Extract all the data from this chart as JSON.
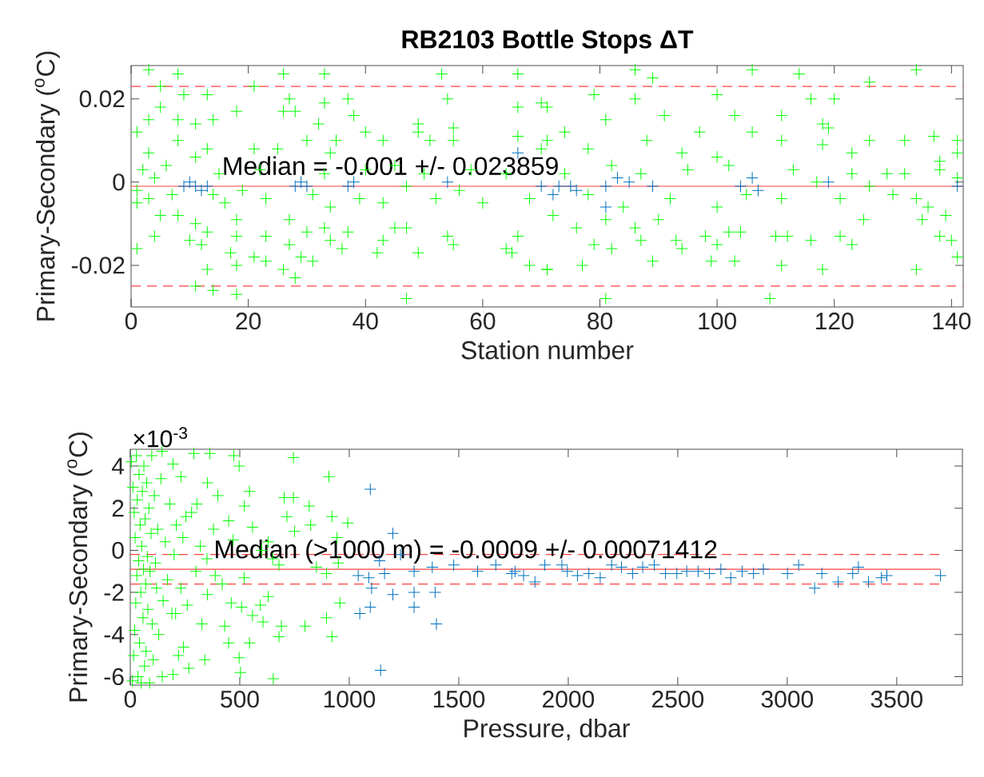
{
  "chart_data": [
    {
      "type": "scatter",
      "title": "RB2103 Bottle Stops ΔT",
      "xlabel": "Station number",
      "ylabel": "Primary-Secondary ($^{o}$C)",
      "marker": "cross",
      "xlim": [
        0,
        142
      ],
      "ylim": [
        -0.03,
        0.028
      ],
      "xticks": [
        0,
        20,
        40,
        60,
        80,
        100,
        120,
        140
      ],
      "yticks": [
        {
          "value": -0.02,
          "label": "-0.02"
        },
        0,
        {
          "value": 0.02,
          "label": "0.02"
        }
      ],
      "annotations": [
        "Median = -0.001 +/- 0.023859"
      ],
      "ref_lines": [
        {
          "axis": "y",
          "value": 0.023,
          "color": "#ff4040",
          "line_style": "dashed"
        },
        {
          "axis": "y",
          "value": -0.001,
          "color": "#ff4040",
          "line_style": "solid"
        },
        {
          "axis": "y",
          "value": -0.025,
          "color": "#ff4040",
          "line_style": "dashed"
        }
      ],
      "series": [
        {
          "color": "#00ff00",
          "x": [
            3,
            8,
            26,
            33,
            53,
            66,
            5,
            21,
            9,
            13,
            5,
            18,
            27,
            28,
            26,
            33,
            37,
            38,
            54,
            49,
            55,
            66,
            71,
            3,
            8,
            11,
            14,
            40,
            32,
            49,
            1,
            8,
            30,
            35,
            43,
            66,
            71,
            13,
            21,
            25,
            51,
            55,
            3,
            11,
            34,
            70,
            1,
            5,
            8,
            11,
            18,
            27,
            4,
            10,
            13,
            18,
            30,
            33,
            37,
            43,
            45,
            47,
            54,
            66,
            1,
            12,
            17,
            21,
            23,
            23,
            27,
            29,
            31,
            34,
            36,
            42,
            49,
            55,
            64,
            65,
            13,
            18,
            26,
            28,
            68,
            71,
            11,
            14,
            18,
            47,
            86,
            89,
            106,
            114,
            134,
            126,
            79,
            100,
            86,
            116,
            120,
            81,
            91,
            103,
            111,
            118,
            119,
            74,
            97,
            106,
            137,
            126,
            132,
            141,
            88,
            111,
            78,
            94,
            100,
            123,
            118,
            141,
            138,
            129,
            70,
            72,
            76,
            81,
            86,
            90,
            93,
            94,
            98,
            100,
            102,
            104,
            110,
            112,
            116,
            121,
            123,
            125,
            135,
            138,
            140,
            79,
            82,
            87,
            89,
            77,
            99,
            103,
            111,
            118,
            134,
            141,
            81,
            109,
            71,
            1,
            2,
            3,
            4,
            6,
            7,
            14,
            15,
            16,
            19,
            22,
            23,
            31,
            33,
            34,
            39,
            40,
            43,
            45,
            47,
            50,
            52,
            56,
            58,
            60,
            64,
            68,
            74,
            78,
            82,
            84,
            87,
            92,
            95,
            100,
            102,
            105,
            111,
            113,
            117,
            121,
            123,
            126,
            130,
            132,
            134,
            136,
            138,
            139,
            141
          ],
          "values": [
            0.027,
            0.026,
            0.026,
            0.026,
            0.026,
            0.026,
            0.023,
            0.023,
            0.021,
            0.021,
            0.018,
            0.017,
            0.02,
            0.017,
            0.017,
            0.019,
            0.02,
            0.016,
            0.02,
            0.014,
            0.013,
            0.018,
            0.018,
            0.015,
            0.015,
            0.014,
            0.015,
            0.012,
            0.014,
            0.012,
            0.012,
            0.01,
            0.01,
            0.01,
            0.01,
            0.011,
            0.01,
            0.008,
            0.008,
            0.008,
            0.01,
            0.01,
            0.007,
            0.006,
            0.007,
            0.008,
            -0.005,
            -0.008,
            -0.008,
            -0.01,
            -0.009,
            -0.009,
            -0.013,
            -0.014,
            -0.012,
            -0.013,
            -0.012,
            -0.011,
            -0.012,
            -0.014,
            -0.011,
            -0.011,
            -0.013,
            -0.013,
            -0.016,
            -0.015,
            -0.017,
            -0.018,
            -0.013,
            -0.019,
            -0.015,
            -0.018,
            -0.019,
            -0.014,
            -0.016,
            -0.017,
            -0.017,
            -0.015,
            -0.016,
            -0.017,
            -0.021,
            -0.02,
            -0.021,
            -0.023,
            -0.02,
            -0.021,
            -0.025,
            -0.026,
            -0.027,
            -0.028,
            0.027,
            0.025,
            0.027,
            0.026,
            0.027,
            0.024,
            0.021,
            0.021,
            0.02,
            0.02,
            0.02,
            0.015,
            0.016,
            0.016,
            0.016,
            0.014,
            0.013,
            0.012,
            0.012,
            0.012,
            0.011,
            0.01,
            0.01,
            0.01,
            0.01,
            0.01,
            0.008,
            0.007,
            0.006,
            0.007,
            0.009,
            0.007,
            0.005,
            0.002,
            0.019,
            -0.008,
            -0.011,
            -0.009,
            -0.011,
            -0.009,
            -0.014,
            -0.016,
            -0.013,
            -0.015,
            -0.012,
            -0.012,
            -0.013,
            -0.013,
            -0.014,
            -0.013,
            -0.015,
            -0.009,
            -0.009,
            -0.013,
            -0.014,
            -0.015,
            -0.016,
            -0.014,
            -0.019,
            -0.02,
            -0.019,
            -0.019,
            -0.02,
            -0.021,
            -0.021,
            -0.018,
            -0.028,
            -0.028,
            -0.021,
            -0.002,
            0.003,
            -0.004,
            0.001,
            0.004,
            -0.003,
            -0.003,
            0.002,
            -0.005,
            -0.002,
            0.003,
            -0.004,
            -0.003,
            0.002,
            -0.006,
            -0.004,
            0.003,
            -0.005,
            0.004,
            -0.001,
            0.002,
            -0.004,
            -0.002,
            0.003,
            -0.005,
            0.002,
            -0.004,
            0.002,
            -0.003,
            0.004,
            -0.006,
            0.002,
            -0.004,
            0.003,
            -0.006,
            0.004,
            -0.003,
            -0.004,
            0.003,
            0.0,
            -0.004,
            0.002,
            -0.001,
            -0.003,
            0.002,
            -0.004,
            -0.006,
            0.003,
            -0.008,
            0.001
          ]
        },
        {
          "color": "#0072bd",
          "x": [
            9,
            10,
            11,
            12,
            13,
            28,
            29,
            30,
            37,
            38,
            54,
            66,
            70,
            72,
            73,
            75,
            76,
            81,
            81,
            83,
            85,
            89,
            104,
            106,
            107,
            119,
            141
          ],
          "values": [
            -0.001,
            0.0,
            -0.001,
            -0.002,
            -0.001,
            -0.001,
            0.0,
            -0.001,
            -0.001,
            0.0,
            0.0,
            0.007,
            -0.001,
            -0.003,
            -0.001,
            -0.001,
            -0.002,
            -0.001,
            -0.006,
            0.001,
            0.0,
            -0.001,
            -0.001,
            0.001,
            -0.002,
            0.0,
            -0.001
          ]
        }
      ]
    },
    {
      "type": "scatter",
      "xlabel": "Pressure, dbar",
      "ylabel": "Primary-Secondary ($^{o}$C)",
      "marker": "cross",
      "xlim": [
        0,
        3800
      ],
      "ylim": [
        -6.4,
        4.8
      ],
      "xticks": [
        0,
        500,
        1000,
        1500,
        2000,
        2500,
        3000,
        3500
      ],
      "yticks": [
        -6,
        -4,
        -2,
        0,
        2,
        4
      ],
      "annotations": [
        "×10$^{-3}$",
        "Median (>1000 m) = -0.0009 +/- 0.00071412"
      ],
      "series": [
        {
          "color": "#00ff00",
          "x": [
            745,
            907,
            544,
            521,
            472,
            497,
            703,
            745,
            817,
            715,
            921,
            993,
            824,
            304,
            400,
            352,
            231,
            363,
            290,
            195,
            98,
            145,
            254,
            449,
            558,
            630,
            944,
            679,
            896,
            630,
            594,
            508,
            558,
            606,
            690,
            798,
            896,
            921,
            957,
            679,
            544,
            449,
            497,
            653,
            503,
            340,
            431,
            327,
            243,
            195,
            146,
            267,
            207,
            231,
            352,
            388,
            461,
            5,
            10,
            12,
            15,
            18,
            20,
            22,
            25,
            28,
            30,
            32,
            35,
            38,
            40,
            42,
            45,
            48,
            50,
            52,
            55,
            58,
            60,
            62,
            65,
            68,
            70,
            72,
            75,
            78,
            80,
            85,
            88,
            90,
            95,
            100,
            105,
            110,
            115,
            120,
            125,
            130,
            140,
            150,
            160,
            170,
            180,
            190,
            200,
            210,
            220,
            240,
            260,
            280,
            300,
            320,
            350,
            380,
            420,
            470,
            520,
            600,
            650,
            750,
            850,
            950
          ],
          "values": [
            4.4,
            3.5,
            2.8,
            2.1,
            4.5,
            4.0,
            2.5,
            2.5,
            2.1,
            1.6,
            1.6,
            1.3,
            1.2,
            2.2,
            2.6,
            3.2,
            3.5,
            4.6,
            4.6,
            4.1,
            4.5,
            4.7,
            1.6,
            1.4,
            1.1,
            0.4,
            0.6,
            -0.7,
            -1.1,
            -2.2,
            -2.6,
            -2.7,
            -3.1,
            -3.4,
            -3.6,
            -3.6,
            -3.2,
            -4.1,
            -2.5,
            -4.1,
            -4.4,
            -4.4,
            -5.1,
            -6.1,
            -5.8,
            -5.2,
            -3.6,
            -3.5,
            -4.6,
            -5.9,
            -6.0,
            -5.6,
            -3.0,
            -1.8,
            -2.1,
            -1.2,
            -2.5,
            4.2,
            -6.2,
            3.0,
            -5.0,
            1.8,
            -3.8,
            0.6,
            -2.5,
            4.5,
            -1.2,
            2.4,
            -6.0,
            -0.5,
            3.6,
            -4.4,
            1.2,
            -2.0,
            -6.3,
            0.2,
            2.8,
            -3.2,
            -0.9,
            4.0,
            -5.5,
            1.5,
            -1.6,
            -4.8,
            3.2,
            -0.3,
            -2.8,
            2.0,
            -6.3,
            -1.0,
            0.8,
            -3.5,
            -5.2,
            2.6,
            -0.6,
            -1.8,
            1.0,
            -4.0,
            3.4,
            -2.4,
            0.4,
            -1.4,
            2.2,
            -3.0,
            -0.2,
            1.2,
            -5.0,
            0.6,
            -2.6,
            1.8,
            -1.0,
            0.2,
            -0.4,
            1.0,
            -1.6,
            0.5,
            -1.3,
            0.0,
            -0.4,
            0.9,
            -0.8,
            -0.6
          ]
        },
        {
          "color": "#0072bd",
          "x": [
            3125,
            3233,
            3371,
            3455,
            3430,
            3325,
            3299,
            3052,
            3001,
            3158,
            2891,
            2794,
            2846,
            2742,
            2697,
            2645,
            2593,
            2541,
            2496,
            2444,
            2393,
            2340,
            2294,
            2243,
            2198,
            2146,
            2094,
            2042,
            1996,
            1971,
            1893,
            1848,
            1796,
            1757,
            3700,
            1096,
            1199,
            1041,
            1089,
            1161,
            1296,
            1379,
            1477,
            1586,
            1669,
            1742,
            1102,
            1199,
            1296,
            1392,
            1048,
            1096,
            1296,
            1398,
            1143,
            1234,
            1138
          ],
          "values": [
            -1.8,
            -1.5,
            -1.5,
            -1.2,
            -1.3,
            -0.8,
            -1.1,
            -0.7,
            -1.1,
            -1.1,
            -0.9,
            -1.0,
            -1.1,
            -1.3,
            -0.9,
            -1.1,
            -1.0,
            -1.0,
            -1.1,
            -1.1,
            -0.7,
            -0.8,
            -1.1,
            -0.8,
            -0.7,
            -1.3,
            -1.1,
            -1.2,
            -1.0,
            -0.7,
            -0.7,
            -1.5,
            -1.2,
            -1.0,
            -1.2,
            2.9,
            0.8,
            -1.2,
            -1.3,
            -1.1,
            -1.0,
            -0.8,
            -0.7,
            -1.0,
            -0.7,
            -1.1,
            -1.8,
            -2.1,
            -2.0,
            -2.0,
            -3.0,
            -2.7,
            -2.7,
            -3.5,
            -5.7,
            -0.2,
            -0.5
          ]
        },
        {
          "type": "line",
          "marker": "none",
          "line_style": "dashed",
          "color": "#ff4040",
          "x": [
            0,
            3700
          ],
          "values": [
            -0.2,
            -0.2
          ]
        },
        {
          "type": "line",
          "marker": "none",
          "line_style": "solid",
          "color": "#ff4040",
          "x": [
            0,
            3700
          ],
          "values": [
            -0.9,
            -0.9
          ]
        },
        {
          "type": "line",
          "marker": "none",
          "line_style": "dashed",
          "color": "#ff4040",
          "x": [
            0,
            3700
          ],
          "values": [
            -1.6,
            -1.6
          ]
        }
      ]
    }
  ]
}
